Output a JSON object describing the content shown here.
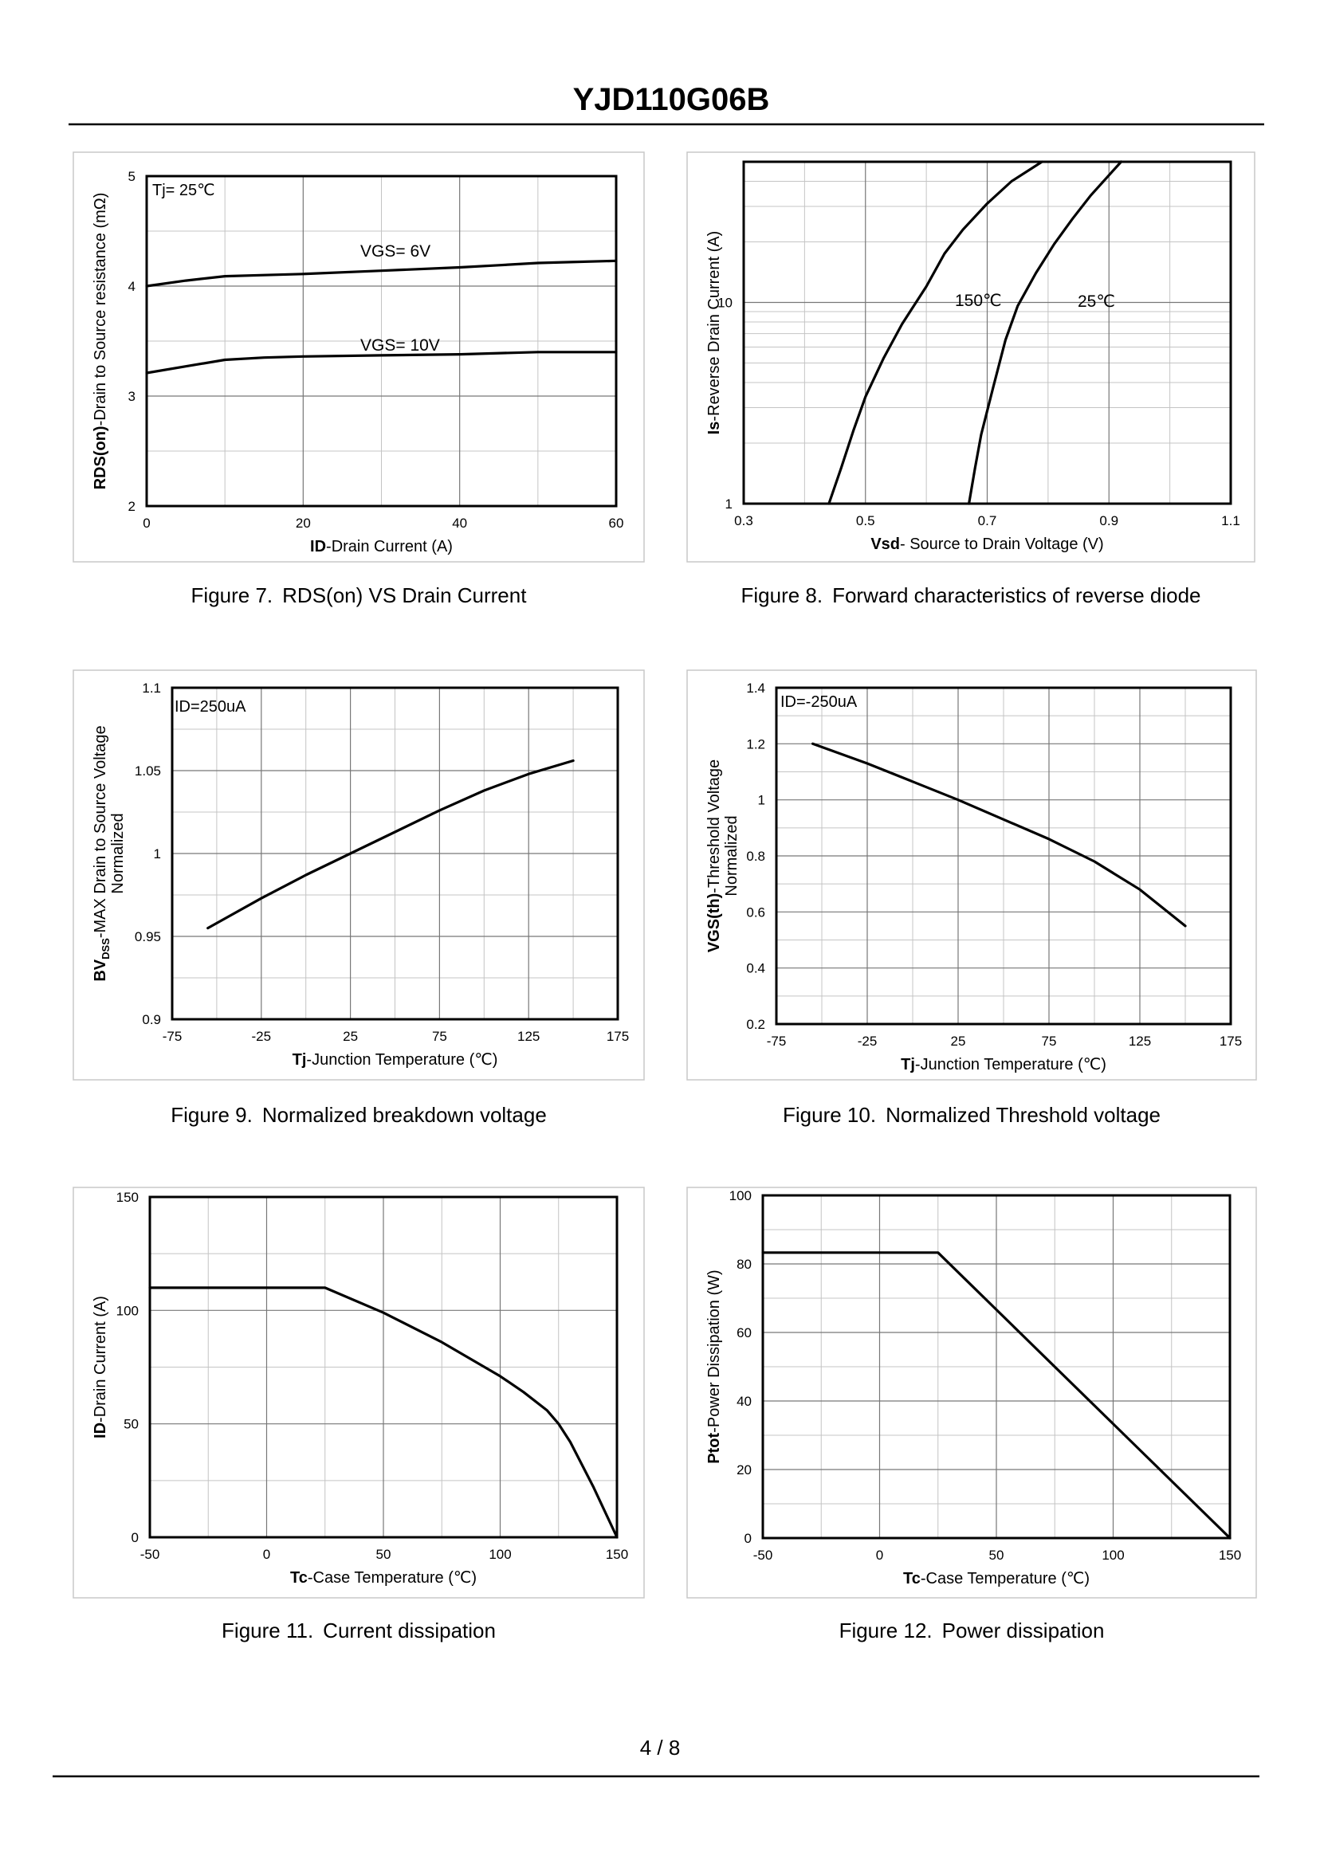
{
  "header": {
    "part_number": "YJD110G06B"
  },
  "footer": {
    "page": "4 / 8"
  },
  "chart_data": [
    {
      "type": "line",
      "figure_label": "Figure 7.",
      "caption": "RDS(on) VS Drain Current",
      "ylabel": "RDS(on)-Drain to Source resistance (mΩ)",
      "xlabel": "ID-Drain Current (A)",
      "xlim": [
        0,
        60
      ],
      "ylim": [
        2,
        5
      ],
      "xticks": [
        0,
        20,
        40,
        60
      ],
      "yticks": [
        2,
        3,
        4,
        5
      ],
      "annotation": "Tj= 25℃",
      "series": [
        {
          "name": "VGS= 6V",
          "x": [
            0,
            5,
            10,
            15,
            20,
            30,
            40,
            45,
            50,
            55,
            60
          ],
          "y": [
            4.0,
            4.05,
            4.09,
            4.1,
            4.11,
            4.14,
            4.17,
            4.19,
            4.21,
            4.22,
            4.23
          ]
        },
        {
          "name": "VGS= 10V",
          "x": [
            0,
            5,
            10,
            15,
            20,
            30,
            40,
            50,
            60
          ],
          "y": [
            3.21,
            3.27,
            3.33,
            3.35,
            3.36,
            3.37,
            3.38,
            3.4,
            3.4
          ]
        }
      ]
    },
    {
      "type": "line",
      "figure_label": "Figure 8.",
      "caption": "Forward characteristics of reverse diode",
      "ylabel": "Is-Reverse Drain Current (A)",
      "xlabel": "Vsd- Source to Drain Voltage (V)",
      "xlim": [
        0.3,
        1.1
      ],
      "ylim": [
        1,
        50
      ],
      "yscale": "log",
      "xticks": [
        "0.3",
        "0.5",
        "0.7",
        "0.9",
        "1.1"
      ],
      "yticks": [
        "1",
        "10"
      ],
      "series": [
        {
          "name": "150℃",
          "x": [
            0.44,
            0.46,
            0.48,
            0.5,
            0.53,
            0.56,
            0.6,
            0.63,
            0.66,
            0.7,
            0.74,
            0.79
          ],
          "y": [
            1,
            1.5,
            2.3,
            3.4,
            5.3,
            7.8,
            12,
            17.5,
            23,
            31,
            40,
            50
          ]
        },
        {
          "name": "25℃",
          "x": [
            0.67,
            0.68,
            0.69,
            0.71,
            0.73,
            0.75,
            0.78,
            0.81,
            0.84,
            0.87,
            0.92
          ],
          "y": [
            1,
            1.5,
            2.2,
            3.8,
            6.5,
            9.6,
            14,
            19.5,
            26,
            34,
            50
          ]
        }
      ]
    },
    {
      "type": "line",
      "figure_label": "Figure 9.",
      "caption": "Normalized breakdown voltage",
      "ylabel": "BVDSS-MAX Drain to Source Voltage",
      "ylabel2": "Normalized",
      "ylabel_main": "BV",
      "ylabel_sub": "DSS",
      "ylabel_rest": "-MAX Drain to Source Voltage",
      "xlabel": "Tj-Junction Temperature (℃)",
      "xlim": [
        -75,
        175
      ],
      "ylim": [
        0.9,
        1.1
      ],
      "xticks": [
        "-75",
        "-25",
        "25",
        "75",
        "125",
        "175"
      ],
      "yticks": [
        "0.9",
        "0.95",
        "1",
        "1.05",
        "1.1"
      ],
      "annotation": "ID=250uA",
      "series": [
        {
          "name": "BVDSS",
          "x": [
            -55,
            -25,
            0,
            25,
            50,
            75,
            100,
            125,
            150
          ],
          "y": [
            0.955,
            0.973,
            0.987,
            1.0,
            1.013,
            1.026,
            1.038,
            1.048,
            1.056
          ]
        }
      ]
    },
    {
      "type": "line",
      "figure_label": "Figure 10.",
      "caption": "Normalized Threshold voltage",
      "ylabel": "VGS(th)-Threshold Voltage",
      "ylabel2": "Normalized",
      "xlabel": "Tj-Junction Temperature (℃)",
      "xlim": [
        -75,
        175
      ],
      "ylim": [
        0.2,
        1.4
      ],
      "xticks": [
        "-75",
        "-25",
        "25",
        "75",
        "125",
        "175"
      ],
      "yticks": [
        "0.2",
        "0.4",
        "0.6",
        "0.8",
        "1",
        "1.2",
        "1.4"
      ],
      "annotation": "ID=-250uA",
      "series": [
        {
          "name": "VGS(th)",
          "x": [
            -55,
            -25,
            0,
            25,
            50,
            75,
            100,
            125,
            150
          ],
          "y": [
            1.2,
            1.13,
            1.065,
            1.0,
            0.93,
            0.86,
            0.78,
            0.68,
            0.55
          ]
        }
      ]
    },
    {
      "type": "line",
      "figure_label": "Figure 11.",
      "caption": "Current dissipation",
      "ylabel": "ID-Drain Current (A)",
      "xlabel": "Tc-Case Temperature (℃)",
      "xlim": [
        -50,
        150
      ],
      "ylim": [
        0,
        150
      ],
      "xticks": [
        "-50",
        "0",
        "50",
        "100",
        "150"
      ],
      "yticks": [
        "0",
        "50",
        "100",
        "150"
      ],
      "series": [
        {
          "name": "ID",
          "x": [
            -50,
            25,
            50,
            75,
            100,
            110,
            120,
            125,
            130,
            140,
            150
          ],
          "y": [
            110,
            110,
            99,
            86,
            71,
            64,
            56,
            50,
            42,
            22,
            0
          ]
        }
      ]
    },
    {
      "type": "line",
      "figure_label": "Figure 12.",
      "caption": "Power dissipation",
      "ylabel": "Ptot-Power Dissipation (W)",
      "xlabel": "Tc-Case Temperature (℃)",
      "xlim": [
        -50,
        150
      ],
      "ylim": [
        0,
        100
      ],
      "xticks": [
        "-50",
        "0",
        "50",
        "100",
        "150"
      ],
      "yticks": [
        "0",
        "20",
        "40",
        "60",
        "80",
        "100"
      ],
      "series": [
        {
          "name": "Ptot",
          "x": [
            -50,
            25,
            150
          ],
          "y": [
            83.3,
            83.3,
            0
          ]
        }
      ]
    }
  ]
}
